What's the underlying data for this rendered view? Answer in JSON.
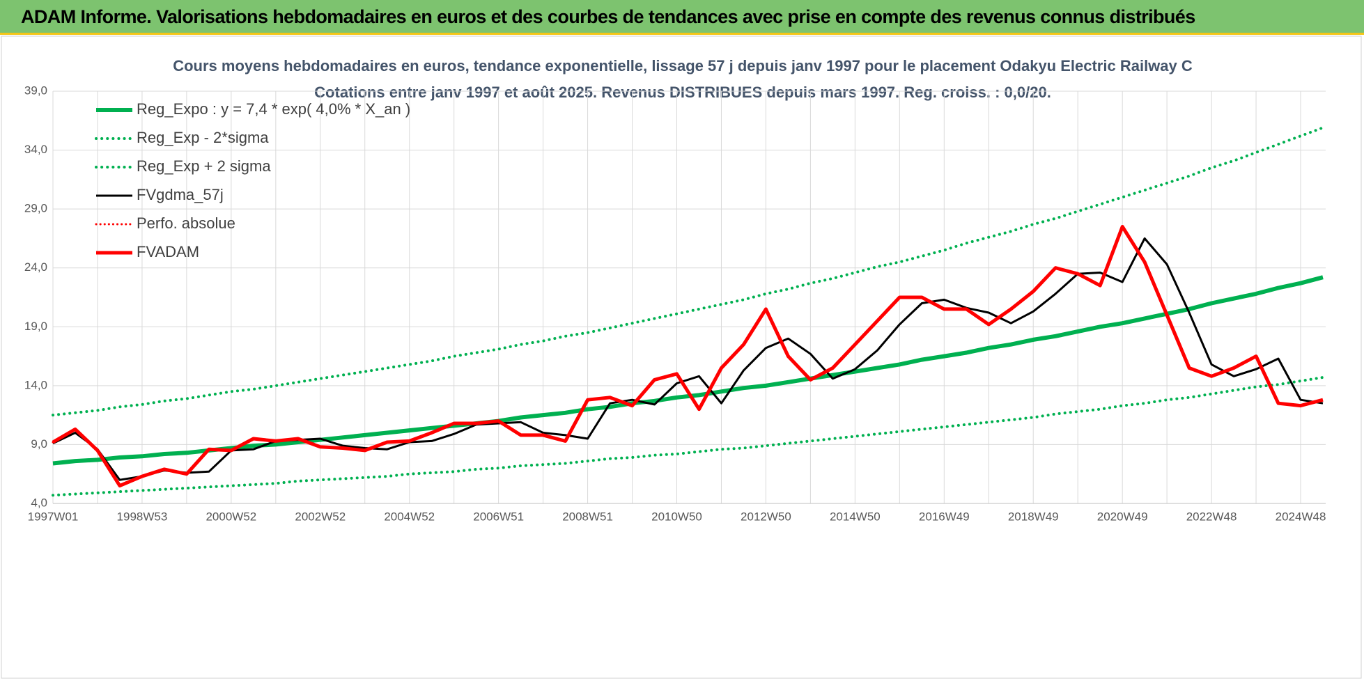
{
  "header": {
    "title": "ADAM Informe. Valorisations hebdomadaires en euros et des courbes de tendances avec prise en compte des revenus connus distribués"
  },
  "chart_data": {
    "type": "line",
    "title": "Cours moyens hebdomadaires en euros, tendance exponentielle, lissage 57 j depuis janv 1997 pour le placement Odakyu Electric Railway C",
    "subtitle": "Cotations entre janv 1997 et août 2025.  Revenus DISTRIBUES depuis mars 1997. Reg. croiss. : 0,0/20.",
    "categories": [
      "1997W01",
      null,
      null,
      null,
      "1998W53",
      null,
      null,
      null,
      "2000W52",
      null,
      null,
      null,
      "2002W52",
      null,
      null,
      null,
      "2004W52",
      null,
      null,
      null,
      "2006W51",
      null,
      null,
      null,
      "2008W51",
      null,
      null,
      null,
      "2010W50",
      null,
      null,
      null,
      "2012W50",
      null,
      null,
      null,
      "2014W50",
      null,
      null,
      null,
      "2016W49",
      null,
      null,
      null,
      "2018W49",
      null,
      null,
      null,
      "2020W49",
      null,
      null,
      null,
      "2022W48",
      null,
      null,
      null,
      "2024W48",
      null
    ],
    "ylim": [
      4,
      39
    ],
    "yticks": [
      {
        "value": 4,
        "label": "4,0"
      },
      {
        "value": 9,
        "label": "9,0"
      },
      {
        "value": 14,
        "label": "14,0"
      },
      {
        "value": 19,
        "label": "19,0"
      },
      {
        "value": 24,
        "label": "24,0"
      },
      {
        "value": 29,
        "label": "29,0"
      },
      {
        "value": 34,
        "label": "34,0"
      },
      {
        "value": 39,
        "label": "39,0"
      }
    ],
    "grid": true,
    "legend": "top-left",
    "series": [
      {
        "name": "Reg_Expo : y = 7,4 * exp( 4,0% *  X_an )",
        "color": "#00b050",
        "style": "solid",
        "width": 6,
        "values": [
          7.4,
          7.6,
          7.7,
          7.9,
          8.0,
          8.2,
          8.3,
          8.5,
          8.7,
          8.9,
          9.0,
          9.2,
          9.4,
          9.6,
          9.8,
          10.0,
          10.2,
          10.4,
          10.6,
          10.8,
          11.0,
          11.3,
          11.5,
          11.7,
          12.0,
          12.2,
          12.5,
          12.7,
          13.0,
          13.2,
          13.5,
          13.8,
          14.0,
          14.3,
          14.6,
          14.9,
          15.2,
          15.5,
          15.8,
          16.2,
          16.5,
          16.8,
          17.2,
          17.5,
          17.9,
          18.2,
          18.6,
          19.0,
          19.3,
          19.7,
          20.1,
          20.5,
          21.0,
          21.4,
          21.8,
          22.3,
          22.7,
          23.2
        ]
      },
      {
        "name": "Reg_Exp - 2*sigma",
        "color": "#00b050",
        "style": "dotted",
        "width": 4,
        "values": [
          4.7,
          4.8,
          4.9,
          5.0,
          5.1,
          5.2,
          5.3,
          5.4,
          5.5,
          5.6,
          5.7,
          5.9,
          6.0,
          6.1,
          6.2,
          6.3,
          6.5,
          6.6,
          6.7,
          6.9,
          7.0,
          7.2,
          7.3,
          7.4,
          7.6,
          7.8,
          7.9,
          8.1,
          8.2,
          8.4,
          8.6,
          8.7,
          8.9,
          9.1,
          9.3,
          9.5,
          9.7,
          9.9,
          10.1,
          10.3,
          10.5,
          10.7,
          10.9,
          11.1,
          11.3,
          11.6,
          11.8,
          12.0,
          12.3,
          12.5,
          12.8,
          13.0,
          13.3,
          13.6,
          13.9,
          14.1,
          14.4,
          14.7
        ]
      },
      {
        "name": "Reg_Exp + 2 sigma",
        "color": "#00b050",
        "style": "dotted",
        "width": 4,
        "values": [
          11.5,
          11.7,
          11.9,
          12.2,
          12.4,
          12.7,
          12.9,
          13.2,
          13.5,
          13.7,
          14.0,
          14.3,
          14.6,
          14.9,
          15.2,
          15.5,
          15.8,
          16.1,
          16.5,
          16.8,
          17.1,
          17.5,
          17.8,
          18.2,
          18.5,
          18.9,
          19.3,
          19.7,
          20.1,
          20.5,
          20.9,
          21.3,
          21.8,
          22.2,
          22.7,
          23.1,
          23.6,
          24.1,
          24.5,
          25.0,
          25.5,
          26.1,
          26.6,
          27.1,
          27.7,
          28.2,
          28.8,
          29.4,
          30.0,
          30.6,
          31.2,
          31.8,
          32.5,
          33.1,
          33.8,
          34.5,
          35.2,
          35.9
        ]
      },
      {
        "name": "FVgdma_57j",
        "color": "#000000",
        "style": "solid",
        "width": 3,
        "values": [
          9.1,
          10.0,
          8.6,
          6.0,
          6.3,
          6.8,
          6.6,
          6.7,
          8.5,
          8.6,
          9.3,
          9.4,
          9.5,
          8.9,
          8.7,
          8.6,
          9.2,
          9.3,
          9.9,
          10.7,
          10.8,
          10.9,
          10.0,
          9.8,
          9.5,
          12.5,
          12.8,
          12.4,
          14.2,
          14.8,
          12.5,
          15.3,
          17.2,
          18.0,
          16.7,
          14.6,
          15.4,
          17.0,
          19.2,
          21.0,
          21.3,
          20.6,
          20.2,
          19.3,
          20.3,
          21.8,
          23.5,
          23.6,
          22.8,
          26.5,
          24.3,
          20.2,
          15.8,
          14.8,
          15.4,
          16.3,
          12.8,
          12.5
        ]
      },
      {
        "name": "Perfo. absolue",
        "color": "#ff0000",
        "style": "dotted",
        "width": 3,
        "values": [
          9.2,
          10.3,
          8.5,
          5.5,
          6.3,
          6.9,
          6.5,
          8.6,
          8.5,
          9.5,
          9.3,
          9.5,
          8.8,
          8.7,
          8.5,
          9.2,
          9.3,
          10.0,
          10.8,
          10.8,
          11.0,
          9.8,
          9.8,
          9.3,
          12.8,
          13.0,
          12.3,
          14.5,
          15.0,
          12.0,
          15.5,
          17.5,
          20.5,
          16.5,
          14.5,
          15.5,
          17.5,
          19.5,
          21.5,
          21.5,
          20.5,
          20.5,
          19.2,
          20.5,
          22.0,
          24.0,
          23.5,
          22.5,
          27.5,
          24.5,
          20.0,
          15.5,
          14.8,
          15.5,
          16.5,
          12.5,
          12.3,
          12.8
        ]
      },
      {
        "name": "FVADAM",
        "color": "#ff0000",
        "style": "solid",
        "width": 5,
        "values": [
          9.2,
          10.3,
          8.5,
          5.5,
          6.3,
          6.9,
          6.5,
          8.6,
          8.5,
          9.5,
          9.3,
          9.5,
          8.8,
          8.7,
          8.5,
          9.2,
          9.3,
          10.0,
          10.8,
          10.8,
          11.0,
          9.8,
          9.8,
          9.3,
          12.8,
          13.0,
          12.3,
          14.5,
          15.0,
          12.0,
          15.5,
          17.5,
          20.5,
          16.5,
          14.5,
          15.5,
          17.5,
          19.5,
          21.5,
          21.5,
          20.5,
          20.5,
          19.2,
          20.5,
          22.0,
          24.0,
          23.5,
          22.5,
          27.5,
          24.5,
          20.0,
          15.5,
          14.8,
          15.5,
          16.5,
          12.5,
          12.3,
          12.8
        ]
      }
    ]
  }
}
